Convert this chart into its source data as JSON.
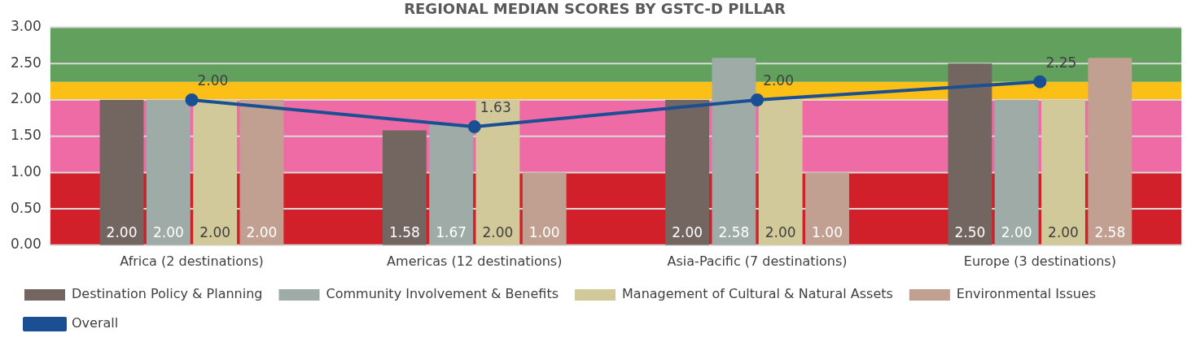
{
  "chart_data": {
    "type": "bar",
    "title": "REGIONAL MEDIAN SCORES BY GSTC-D PILLAR",
    "categories": [
      "Africa (2 destinations)",
      "Americas (12 destinations)",
      "Asia-Pacific (7 destinations)",
      "Europe (3 destinations)"
    ],
    "series": [
      {
        "name": "Destination Policy & Planning",
        "color": "#736560",
        "values": [
          2.0,
          1.58,
          2.0,
          2.5
        ],
        "value_labels": [
          "2.00",
          "1.58",
          "2.00",
          "2.50"
        ]
      },
      {
        "name": "Community Involvement & Benefits",
        "color": "#9eaba7",
        "values": [
          2.0,
          1.67,
          2.58,
          2.0
        ],
        "value_labels": [
          "2.00",
          "1.67",
          "2.58",
          "2.00"
        ]
      },
      {
        "name": "Management of Cultural & Natural Assets",
        "color": "#d2c99b",
        "values": [
          2.0,
          2.0,
          2.0,
          2.0
        ],
        "value_labels": [
          "2.00",
          "2.00",
          "2.00",
          "2.00"
        ]
      },
      {
        "name": "Environmental Issues",
        "color": "#c2a091",
        "values": [
          2.0,
          1.0,
          1.0,
          2.58
        ],
        "value_labels": [
          "2.00",
          "1.00",
          "1.00",
          "2.58"
        ]
      },
      {
        "name": "Overall",
        "type": "line",
        "color": "#1a4f93",
        "values": [
          2.0,
          1.63,
          2.0,
          2.25
        ],
        "value_labels": [
          "2.00",
          "1.63",
          "2.00",
          "2.25"
        ]
      }
    ],
    "ylim": [
      0,
      3
    ],
    "yticks": [
      {
        "value": 0,
        "label": "0.00"
      },
      {
        "value": 0.5,
        "label": "0.50"
      },
      {
        "value": 1,
        "label": "1.00"
      },
      {
        "value": 1.5,
        "label": "1.50"
      },
      {
        "value": 2,
        "label": "2.00"
      },
      {
        "value": 2.5,
        "label": "2.50"
      },
      {
        "value": 3,
        "label": "3.00"
      }
    ],
    "bands": [
      {
        "axis": "y",
        "from": 0,
        "to": 1,
        "color": "#d2202a"
      },
      {
        "axis": "y",
        "from": 1,
        "to": 2,
        "color": "#ef6ba6"
      },
      {
        "axis": "y",
        "from": 2,
        "to": 2.25,
        "color": "#fbbf16"
      },
      {
        "axis": "y",
        "from": 2.25,
        "to": 3,
        "color": "#62a05d"
      }
    ],
    "grid": "y",
    "legend": "bottom",
    "marker": "circle",
    "line_style": "solid"
  }
}
